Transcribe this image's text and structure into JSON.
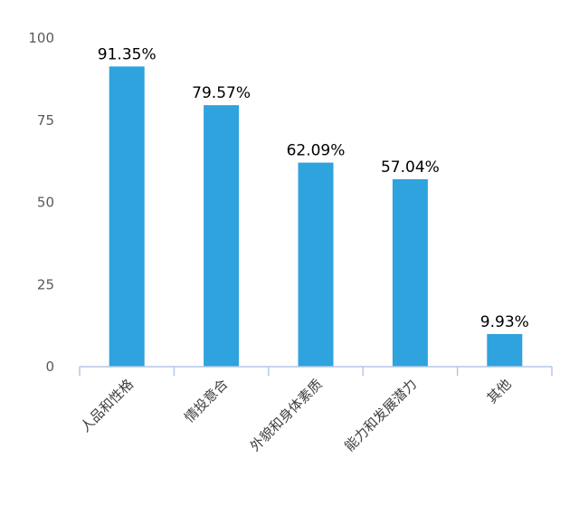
{
  "chart_data": {
    "type": "bar",
    "categories": [
      "人品和性格",
      "情投意合",
      "外貌和身体素质",
      "能力和发展潜力",
      "其他"
    ],
    "values": [
      91.35,
      79.57,
      62.09,
      57.04,
      9.93
    ],
    "data_labels": [
      "91.35%",
      "79.57%",
      "62.09%",
      "57.04%",
      "9.93%"
    ],
    "yticks": [
      0,
      25,
      50,
      75,
      100
    ],
    "ylim": [
      0,
      100
    ],
    "title": "",
    "xlabel": "",
    "ylabel": "",
    "grid": false,
    "bar_color": "#2ea3dd",
    "axis_color": "#b4c7e7"
  }
}
